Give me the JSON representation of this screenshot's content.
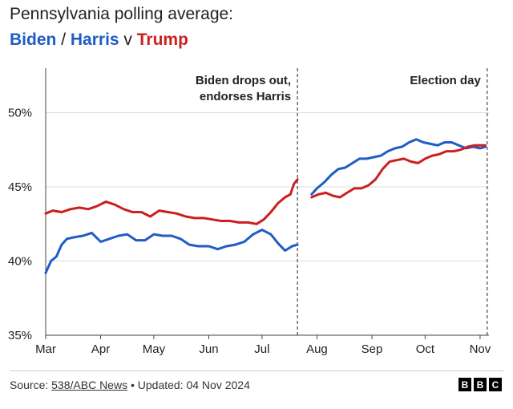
{
  "chart_data": {
    "type": "line",
    "title": "Pennsylvania polling average:",
    "subtitle": {
      "biden": "Biden",
      "sep": "/",
      "harris": "Harris",
      "v": "v",
      "trump": "Trump"
    },
    "xlabel": "",
    "ylabel": "",
    "ylim": [
      35,
      53
    ],
    "x_ticks": [
      "Mar",
      "Apr",
      "May",
      "Jun",
      "Jul",
      "Aug",
      "Sep",
      "Oct",
      "Nov"
    ],
    "y_ticks": [
      "35%",
      "40%",
      "45%",
      "50%"
    ],
    "grid": "horizontal",
    "annotations": [
      {
        "lines": [
          "Biden drops out,",
          "endorses Harris"
        ],
        "date": "2024-07-21"
      },
      {
        "lines": [
          "Election day"
        ],
        "date": "2024-11-05"
      }
    ],
    "colors": {
      "dem": "#1f5cc5",
      "trump": "#cc1f1f"
    },
    "series": [
      {
        "name": "Biden",
        "color": "#1f5cc5",
        "points": [
          [
            "2024-03-01",
            39.2
          ],
          [
            "2024-03-04",
            40.0
          ],
          [
            "2024-03-07",
            40.3
          ],
          [
            "2024-03-10",
            41.1
          ],
          [
            "2024-03-13",
            41.5
          ],
          [
            "2024-03-17",
            41.6
          ],
          [
            "2024-03-22",
            41.7
          ],
          [
            "2024-03-27",
            41.9
          ],
          [
            "2024-04-01",
            41.3
          ],
          [
            "2024-04-06",
            41.5
          ],
          [
            "2024-04-11",
            41.7
          ],
          [
            "2024-04-16",
            41.8
          ],
          [
            "2024-04-21",
            41.4
          ],
          [
            "2024-04-26",
            41.4
          ],
          [
            "2024-05-01",
            41.8
          ],
          [
            "2024-05-06",
            41.7
          ],
          [
            "2024-05-11",
            41.7
          ],
          [
            "2024-05-16",
            41.5
          ],
          [
            "2024-05-21",
            41.1
          ],
          [
            "2024-05-26",
            41.0
          ],
          [
            "2024-06-01",
            41.0
          ],
          [
            "2024-06-06",
            40.8
          ],
          [
            "2024-06-11",
            41.0
          ],
          [
            "2024-06-16",
            41.1
          ],
          [
            "2024-06-21",
            41.3
          ],
          [
            "2024-06-26",
            41.8
          ],
          [
            "2024-07-01",
            42.1
          ],
          [
            "2024-07-06",
            41.8
          ],
          [
            "2024-07-10",
            41.2
          ],
          [
            "2024-07-14",
            40.7
          ],
          [
            "2024-07-18",
            41.0
          ],
          [
            "2024-07-21",
            41.1
          ]
        ]
      },
      {
        "name": "Harris",
        "color": "#1f5cc5",
        "points": [
          [
            "2024-07-29",
            44.5
          ],
          [
            "2024-08-01",
            44.9
          ],
          [
            "2024-08-05",
            45.3
          ],
          [
            "2024-08-09",
            45.8
          ],
          [
            "2024-08-13",
            46.2
          ],
          [
            "2024-08-17",
            46.3
          ],
          [
            "2024-08-21",
            46.6
          ],
          [
            "2024-08-25",
            46.9
          ],
          [
            "2024-08-29",
            46.9
          ],
          [
            "2024-09-02",
            47.0
          ],
          [
            "2024-09-06",
            47.1
          ],
          [
            "2024-09-10",
            47.4
          ],
          [
            "2024-09-14",
            47.6
          ],
          [
            "2024-09-18",
            47.7
          ],
          [
            "2024-09-22",
            48.0
          ],
          [
            "2024-09-26",
            48.2
          ],
          [
            "2024-09-30",
            48.0
          ],
          [
            "2024-10-04",
            47.9
          ],
          [
            "2024-10-08",
            47.8
          ],
          [
            "2024-10-12",
            48.0
          ],
          [
            "2024-10-16",
            48.0
          ],
          [
            "2024-10-20",
            47.8
          ],
          [
            "2024-10-24",
            47.6
          ],
          [
            "2024-10-28",
            47.7
          ],
          [
            "2024-11-01",
            47.6
          ],
          [
            "2024-11-04",
            47.7
          ]
        ]
      },
      {
        "name": "Trump",
        "color": "#cc1f1f",
        "points": [
          [
            "2024-03-01",
            43.2
          ],
          [
            "2024-03-05",
            43.4
          ],
          [
            "2024-03-10",
            43.3
          ],
          [
            "2024-03-15",
            43.5
          ],
          [
            "2024-03-20",
            43.6
          ],
          [
            "2024-03-25",
            43.5
          ],
          [
            "2024-03-30",
            43.7
          ],
          [
            "2024-04-04",
            44.0
          ],
          [
            "2024-04-09",
            43.8
          ],
          [
            "2024-04-14",
            43.5
          ],
          [
            "2024-04-19",
            43.3
          ],
          [
            "2024-04-24",
            43.3
          ],
          [
            "2024-04-29",
            43.0
          ],
          [
            "2024-05-04",
            43.4
          ],
          [
            "2024-05-09",
            43.3
          ],
          [
            "2024-05-14",
            43.2
          ],
          [
            "2024-05-19",
            43.0
          ],
          [
            "2024-05-24",
            42.9
          ],
          [
            "2024-05-29",
            42.9
          ],
          [
            "2024-06-03",
            42.8
          ],
          [
            "2024-06-08",
            42.7
          ],
          [
            "2024-06-13",
            42.7
          ],
          [
            "2024-06-18",
            42.6
          ],
          [
            "2024-06-23",
            42.6
          ],
          [
            "2024-06-28",
            42.5
          ],
          [
            "2024-07-02",
            42.8
          ],
          [
            "2024-07-06",
            43.3
          ],
          [
            "2024-07-10",
            43.9
          ],
          [
            "2024-07-14",
            44.3
          ],
          [
            "2024-07-17",
            44.5
          ],
          [
            "2024-07-19",
            45.2
          ],
          [
            "2024-07-21",
            45.5
          ],
          [
            "2024-07-29",
            44.3
          ],
          [
            "2024-08-02",
            44.5
          ],
          [
            "2024-08-06",
            44.6
          ],
          [
            "2024-08-10",
            44.4
          ],
          [
            "2024-08-14",
            44.3
          ],
          [
            "2024-08-18",
            44.6
          ],
          [
            "2024-08-22",
            44.9
          ],
          [
            "2024-08-26",
            44.9
          ],
          [
            "2024-08-30",
            45.1
          ],
          [
            "2024-09-03",
            45.5
          ],
          [
            "2024-09-07",
            46.2
          ],
          [
            "2024-09-11",
            46.7
          ],
          [
            "2024-09-15",
            46.8
          ],
          [
            "2024-09-19",
            46.9
          ],
          [
            "2024-09-23",
            46.7
          ],
          [
            "2024-09-27",
            46.6
          ],
          [
            "2024-10-01",
            46.9
          ],
          [
            "2024-10-05",
            47.1
          ],
          [
            "2024-10-09",
            47.2
          ],
          [
            "2024-10-13",
            47.4
          ],
          [
            "2024-10-17",
            47.4
          ],
          [
            "2024-10-21",
            47.5
          ],
          [
            "2024-10-25",
            47.7
          ],
          [
            "2024-10-29",
            47.8
          ],
          [
            "2024-11-01",
            47.8
          ],
          [
            "2024-11-04",
            47.8
          ]
        ]
      }
    ]
  },
  "footer": {
    "source_prefix": "Source: ",
    "source_link": "538/ABC News",
    "updated": " • Updated: 04 Nov 2024",
    "logo_letters": [
      "B",
      "B",
      "C"
    ]
  }
}
